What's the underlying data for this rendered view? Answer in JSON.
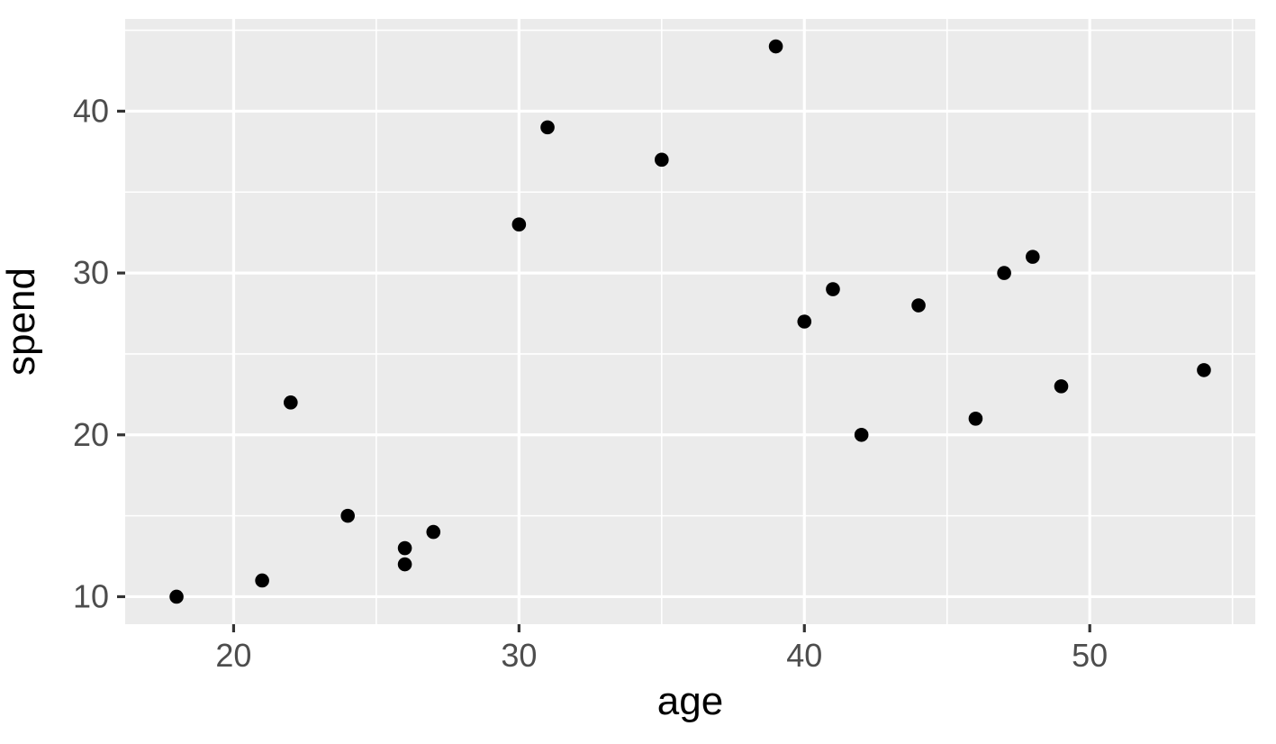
{
  "chart_data": {
    "type": "scatter",
    "title": "",
    "xlabel": "age",
    "ylabel": "spend",
    "xlim": [
      16.2,
      55.8
    ],
    "ylim": [
      8.3,
      45.7
    ],
    "x_ticks": [
      20,
      30,
      40,
      50
    ],
    "x_minor_ticks": [
      25,
      35,
      45,
      55
    ],
    "y_ticks": [
      10,
      20,
      30,
      40
    ],
    "y_minor_ticks": [
      15,
      25,
      35,
      45
    ],
    "grid": "major-and-minor",
    "legend_position": "none",
    "points": [
      {
        "age": 18,
        "spend": 10
      },
      {
        "age": 21,
        "spend": 11
      },
      {
        "age": 22,
        "spend": 22
      },
      {
        "age": 24,
        "spend": 15
      },
      {
        "age": 26,
        "spend": 12
      },
      {
        "age": 26,
        "spend": 13
      },
      {
        "age": 27,
        "spend": 14
      },
      {
        "age": 30,
        "spend": 33
      },
      {
        "age": 31,
        "spend": 39
      },
      {
        "age": 35,
        "spend": 37
      },
      {
        "age": 39,
        "spend": 44
      },
      {
        "age": 40,
        "spend": 27
      },
      {
        "age": 41,
        "spend": 29
      },
      {
        "age": 42,
        "spend": 20
      },
      {
        "age": 44,
        "spend": 28
      },
      {
        "age": 46,
        "spend": 21
      },
      {
        "age": 47,
        "spend": 30
      },
      {
        "age": 48,
        "spend": 31
      },
      {
        "age": 49,
        "spend": 23
      },
      {
        "age": 54,
        "spend": 24
      }
    ],
    "colors": {
      "panel_background": "#EBEBEB",
      "gridline": "#FFFFFF",
      "point": "#000000",
      "tick_label": "#4D4D4D",
      "tick_mark": "#333333",
      "axis_title": "#000000",
      "figure_background": "#FFFFFF"
    }
  }
}
